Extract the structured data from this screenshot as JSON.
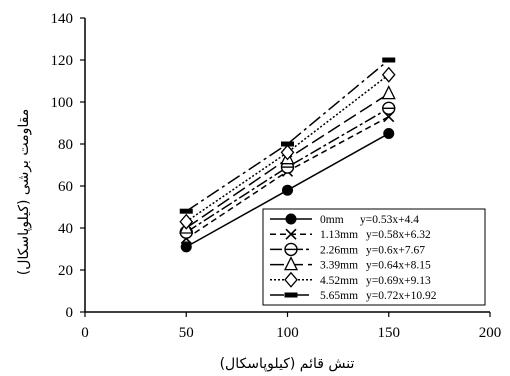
{
  "chart_data": {
    "type": "line",
    "xlabel": "تنش قائم (کیلوپاسکال)",
    "ylabel": "مقاومت برشی (کیلوپاسکال)",
    "xlim": [
      0,
      200
    ],
    "ylim": [
      0,
      140
    ],
    "xticks": [
      0,
      50,
      100,
      150,
      200
    ],
    "yticks": [
      0,
      20,
      40,
      60,
      80,
      100,
      120,
      140
    ],
    "grid": false,
    "legend_position": "bottom-right",
    "x": [
      50,
      100,
      150
    ],
    "series": [
      {
        "name": "0mm",
        "equation": "y=0.53x+4.4",
        "values": [
          31,
          58,
          85
        ],
        "marker": "filled-circle",
        "dash": "none"
      },
      {
        "name": "1.13mm",
        "equation": "y=0.58x+6.32",
        "values": [
          35,
          67,
          93
        ],
        "marker": "x",
        "dash": "6,4"
      },
      {
        "name": "2.26mm",
        "equation": "y=0.6x+7.67",
        "values": [
          38,
          69,
          97
        ],
        "marker": "circle-dash",
        "dash": "12,3,3,3"
      },
      {
        "name": "3.39mm",
        "equation": "y=0.64x+8.15",
        "values": [
          40,
          73,
          104
        ],
        "marker": "triangle",
        "dash": "14,5"
      },
      {
        "name": "4.52mm",
        "equation": "y=0.69x+9.13",
        "values": [
          43,
          76,
          113
        ],
        "marker": "diamond",
        "dash": "2,2"
      },
      {
        "name": "5.65mm",
        "equation": "y=0.72x+10.92",
        "values": [
          48,
          80,
          120
        ],
        "marker": "bar",
        "dash": "14,4,3,4"
      }
    ]
  }
}
